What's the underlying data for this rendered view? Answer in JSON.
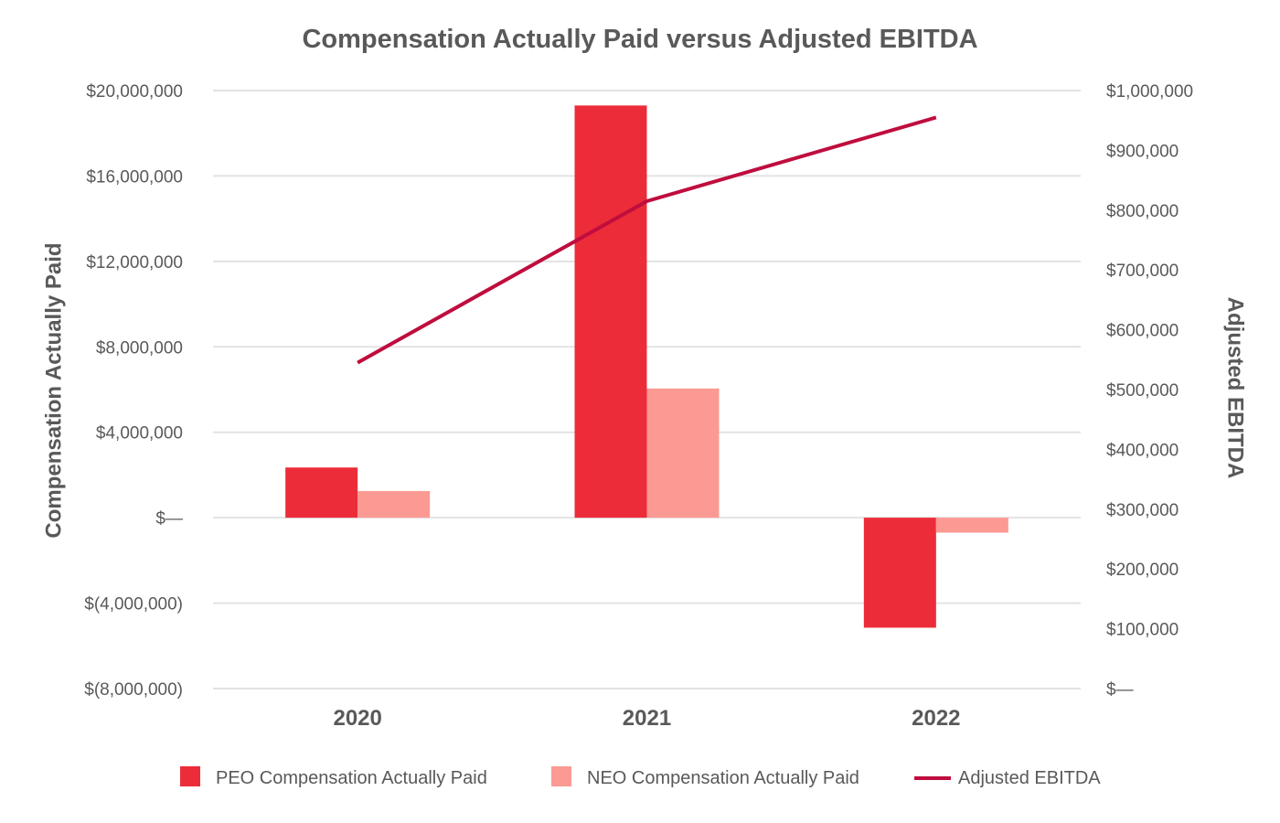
{
  "chart_data": {
    "type": "bar",
    "title": "Compensation Actually Paid versus Adjusted EBITDA",
    "categories": [
      "2020",
      "2021",
      "2022"
    ],
    "y_left": {
      "label": "Compensation Actually Paid",
      "range": [
        -8000000,
        20000000
      ],
      "ticks": [
        -8000000,
        -4000000,
        0,
        4000000,
        8000000,
        12000000,
        16000000,
        20000000
      ],
      "tick_labels": [
        "$(8,000,000)",
        "$(4,000,000)",
        "$—",
        "$4,000,000",
        "$8,000,000",
        "$12,000,000",
        "$16,000,000",
        "$20,000,000"
      ]
    },
    "y_right": {
      "label": "Adjusted EBITDA",
      "range": [
        0,
        1000000
      ],
      "ticks": [
        0,
        100000,
        200000,
        300000,
        400000,
        500000,
        600000,
        700000,
        800000,
        900000,
        1000000
      ],
      "tick_labels": [
        "$—",
        "$100,000",
        "$200,000",
        "$300,000",
        "$400,000",
        "$500,000",
        "$600,000",
        "$700,000",
        "$800,000",
        "$900,000",
        "$1,000,000"
      ]
    },
    "series": [
      {
        "name": "PEO Compensation Actually Paid",
        "type": "bar",
        "axis": "left",
        "color": "#ed2c39",
        "values": [
          2350000,
          19300000,
          -5150000
        ]
      },
      {
        "name": "NEO Compensation Actually Paid",
        "type": "bar",
        "axis": "left",
        "color": "#fb9a93",
        "values": [
          1250000,
          6050000,
          -700000
        ]
      },
      {
        "name": "Adjusted EBITDA",
        "type": "line",
        "axis": "right",
        "color": "#bf0d3e",
        "values": [
          545000,
          815000,
          955000
        ]
      }
    ],
    "grid": true,
    "legend_position": "bottom"
  }
}
